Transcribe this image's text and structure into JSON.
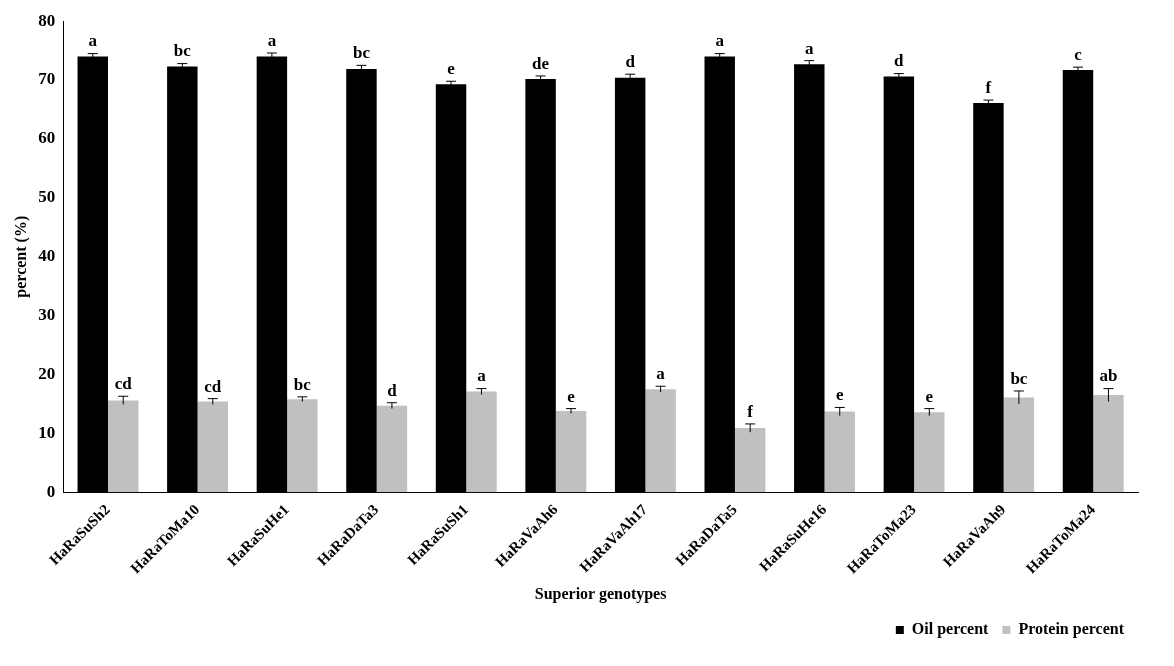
{
  "chart_data": {
    "type": "bar",
    "xlabel": "Superior genotypes",
    "ylabel": "percent (%)",
    "categories": [
      "HaRaSuSh2",
      "HaRaToMa10",
      "HaRaSuHe1",
      "HaRaDaTa3",
      "HaRaSuSh1",
      "HaRaVaAh6",
      "HaRaVaAh17",
      "HaRaDaTa5",
      "HaRaSuHe16",
      "HaRaToMa23",
      "HaRaVaAh9",
      "HaRaToMa24"
    ],
    "series": [
      {
        "name": "Oil percent",
        "color": "#000000",
        "values": [
          74.0,
          72.3,
          74.0,
          71.9,
          69.3,
          70.2,
          70.4,
          74.0,
          72.7,
          70.6,
          66.1,
          71.7
        ],
        "errors": [
          0.5,
          0.5,
          0.6,
          0.6,
          0.5,
          0.5,
          0.6,
          0.5,
          0.6,
          0.5,
          0.5,
          0.5
        ],
        "value_labels": [
          "a",
          "bc",
          "a",
          "bc",
          "e",
          "de",
          "d",
          "a",
          "a",
          "d",
          "f",
          "c"
        ]
      },
      {
        "name": "Protein percent",
        "color": "#c0c0c0",
        "values": [
          15.6,
          15.4,
          15.8,
          14.7,
          17.1,
          13.8,
          17.5,
          10.9,
          13.7,
          13.6,
          16.1,
          16.5
        ],
        "errors": [
          0.7,
          0.5,
          0.4,
          0.5,
          0.5,
          0.4,
          0.5,
          0.7,
          0.7,
          0.6,
          1.1,
          1.1
        ],
        "value_labels": [
          "cd",
          "cd",
          "bc",
          "d",
          "a",
          "e",
          "a",
          "f",
          "e",
          "e",
          "bc",
          "ab"
        ]
      }
    ],
    "ylim": [
      0,
      80
    ],
    "yticks": [
      0,
      10,
      20,
      30,
      40,
      50,
      60,
      70,
      80
    ],
    "grid": false,
    "legend": "bottom right"
  }
}
